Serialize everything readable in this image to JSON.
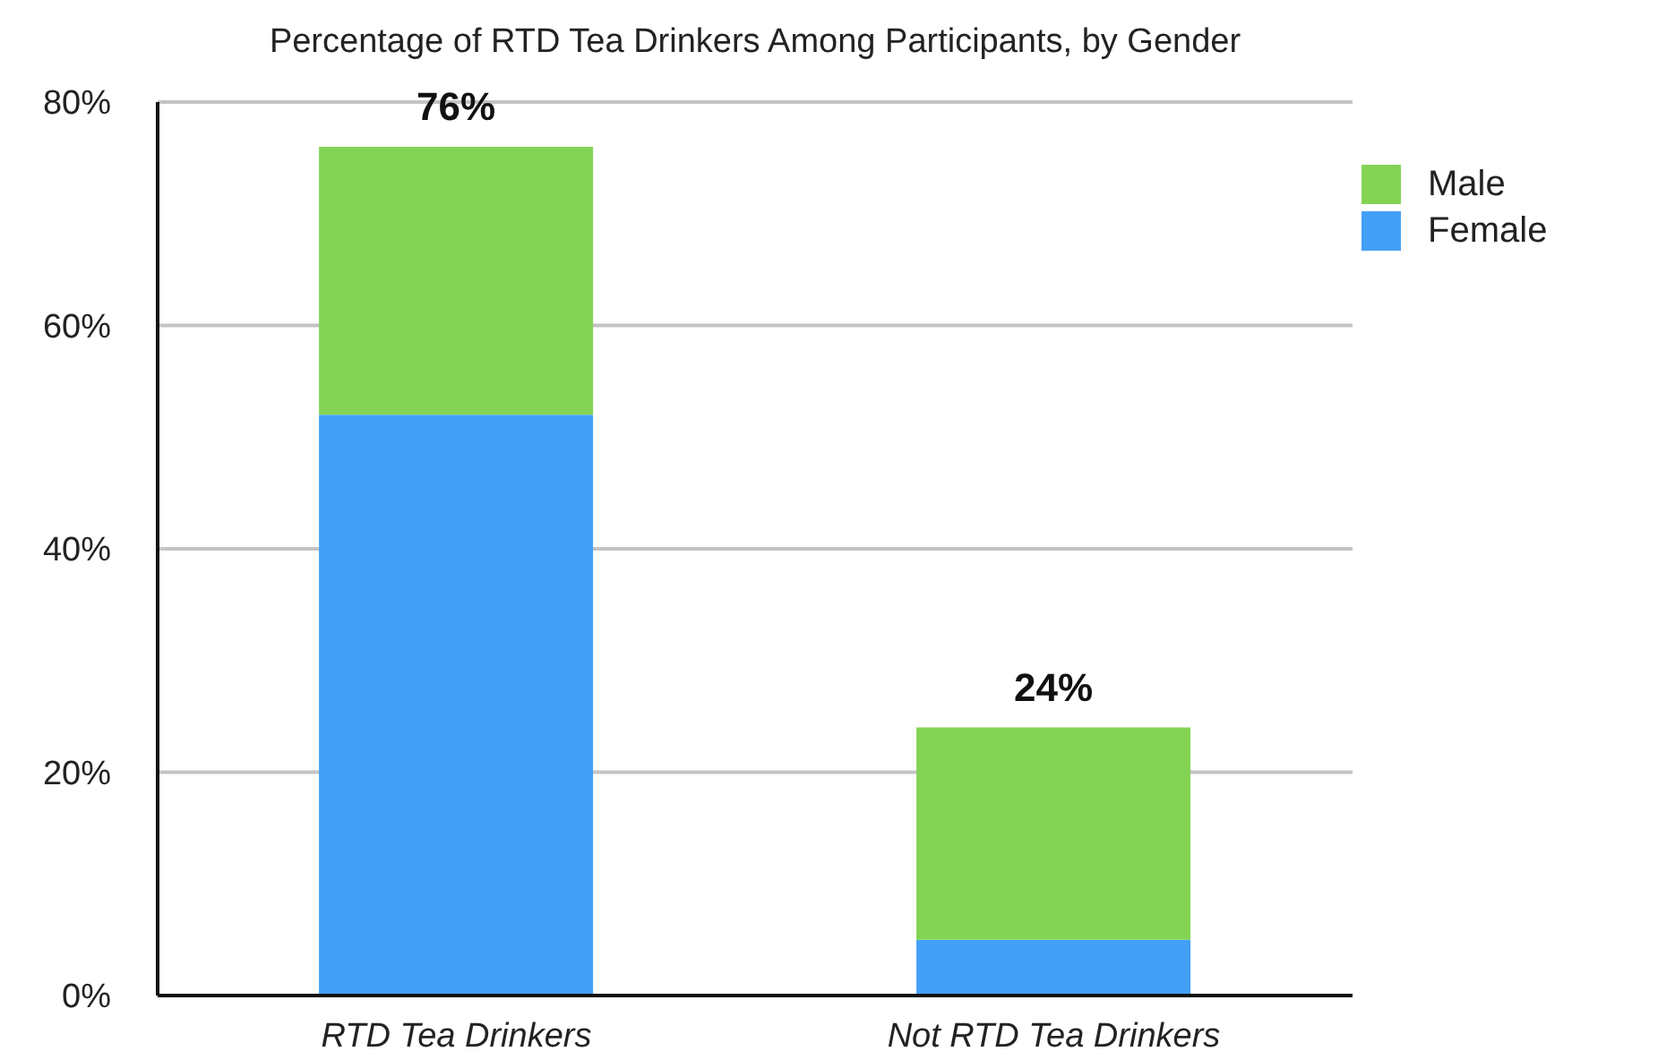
{
  "chart_data": {
    "type": "bar",
    "title": "Percentage of RTD Tea Drinkers Among Participants, by Gender",
    "categories": [
      "RTD Tea Drinkers",
      "Not RTD Tea Drinkers"
    ],
    "stacked": true,
    "series": [
      {
        "name": "Female",
        "color": "#42a0f7",
        "values": [
          52,
          5
        ]
      },
      {
        "name": "Male",
        "color": "#83d354",
        "values": [
          24,
          19
        ]
      }
    ],
    "totals": [
      "76%",
      "24%"
    ],
    "ylim": [
      0,
      80
    ],
    "yticks": [
      {
        "value": 0,
        "label": "0%"
      },
      {
        "value": 20,
        "label": "20%"
      },
      {
        "value": 40,
        "label": "40%"
      },
      {
        "value": 60,
        "label": "60%"
      },
      {
        "value": 80,
        "label": "80%"
      }
    ],
    "grid": "y",
    "legend": "top right"
  }
}
